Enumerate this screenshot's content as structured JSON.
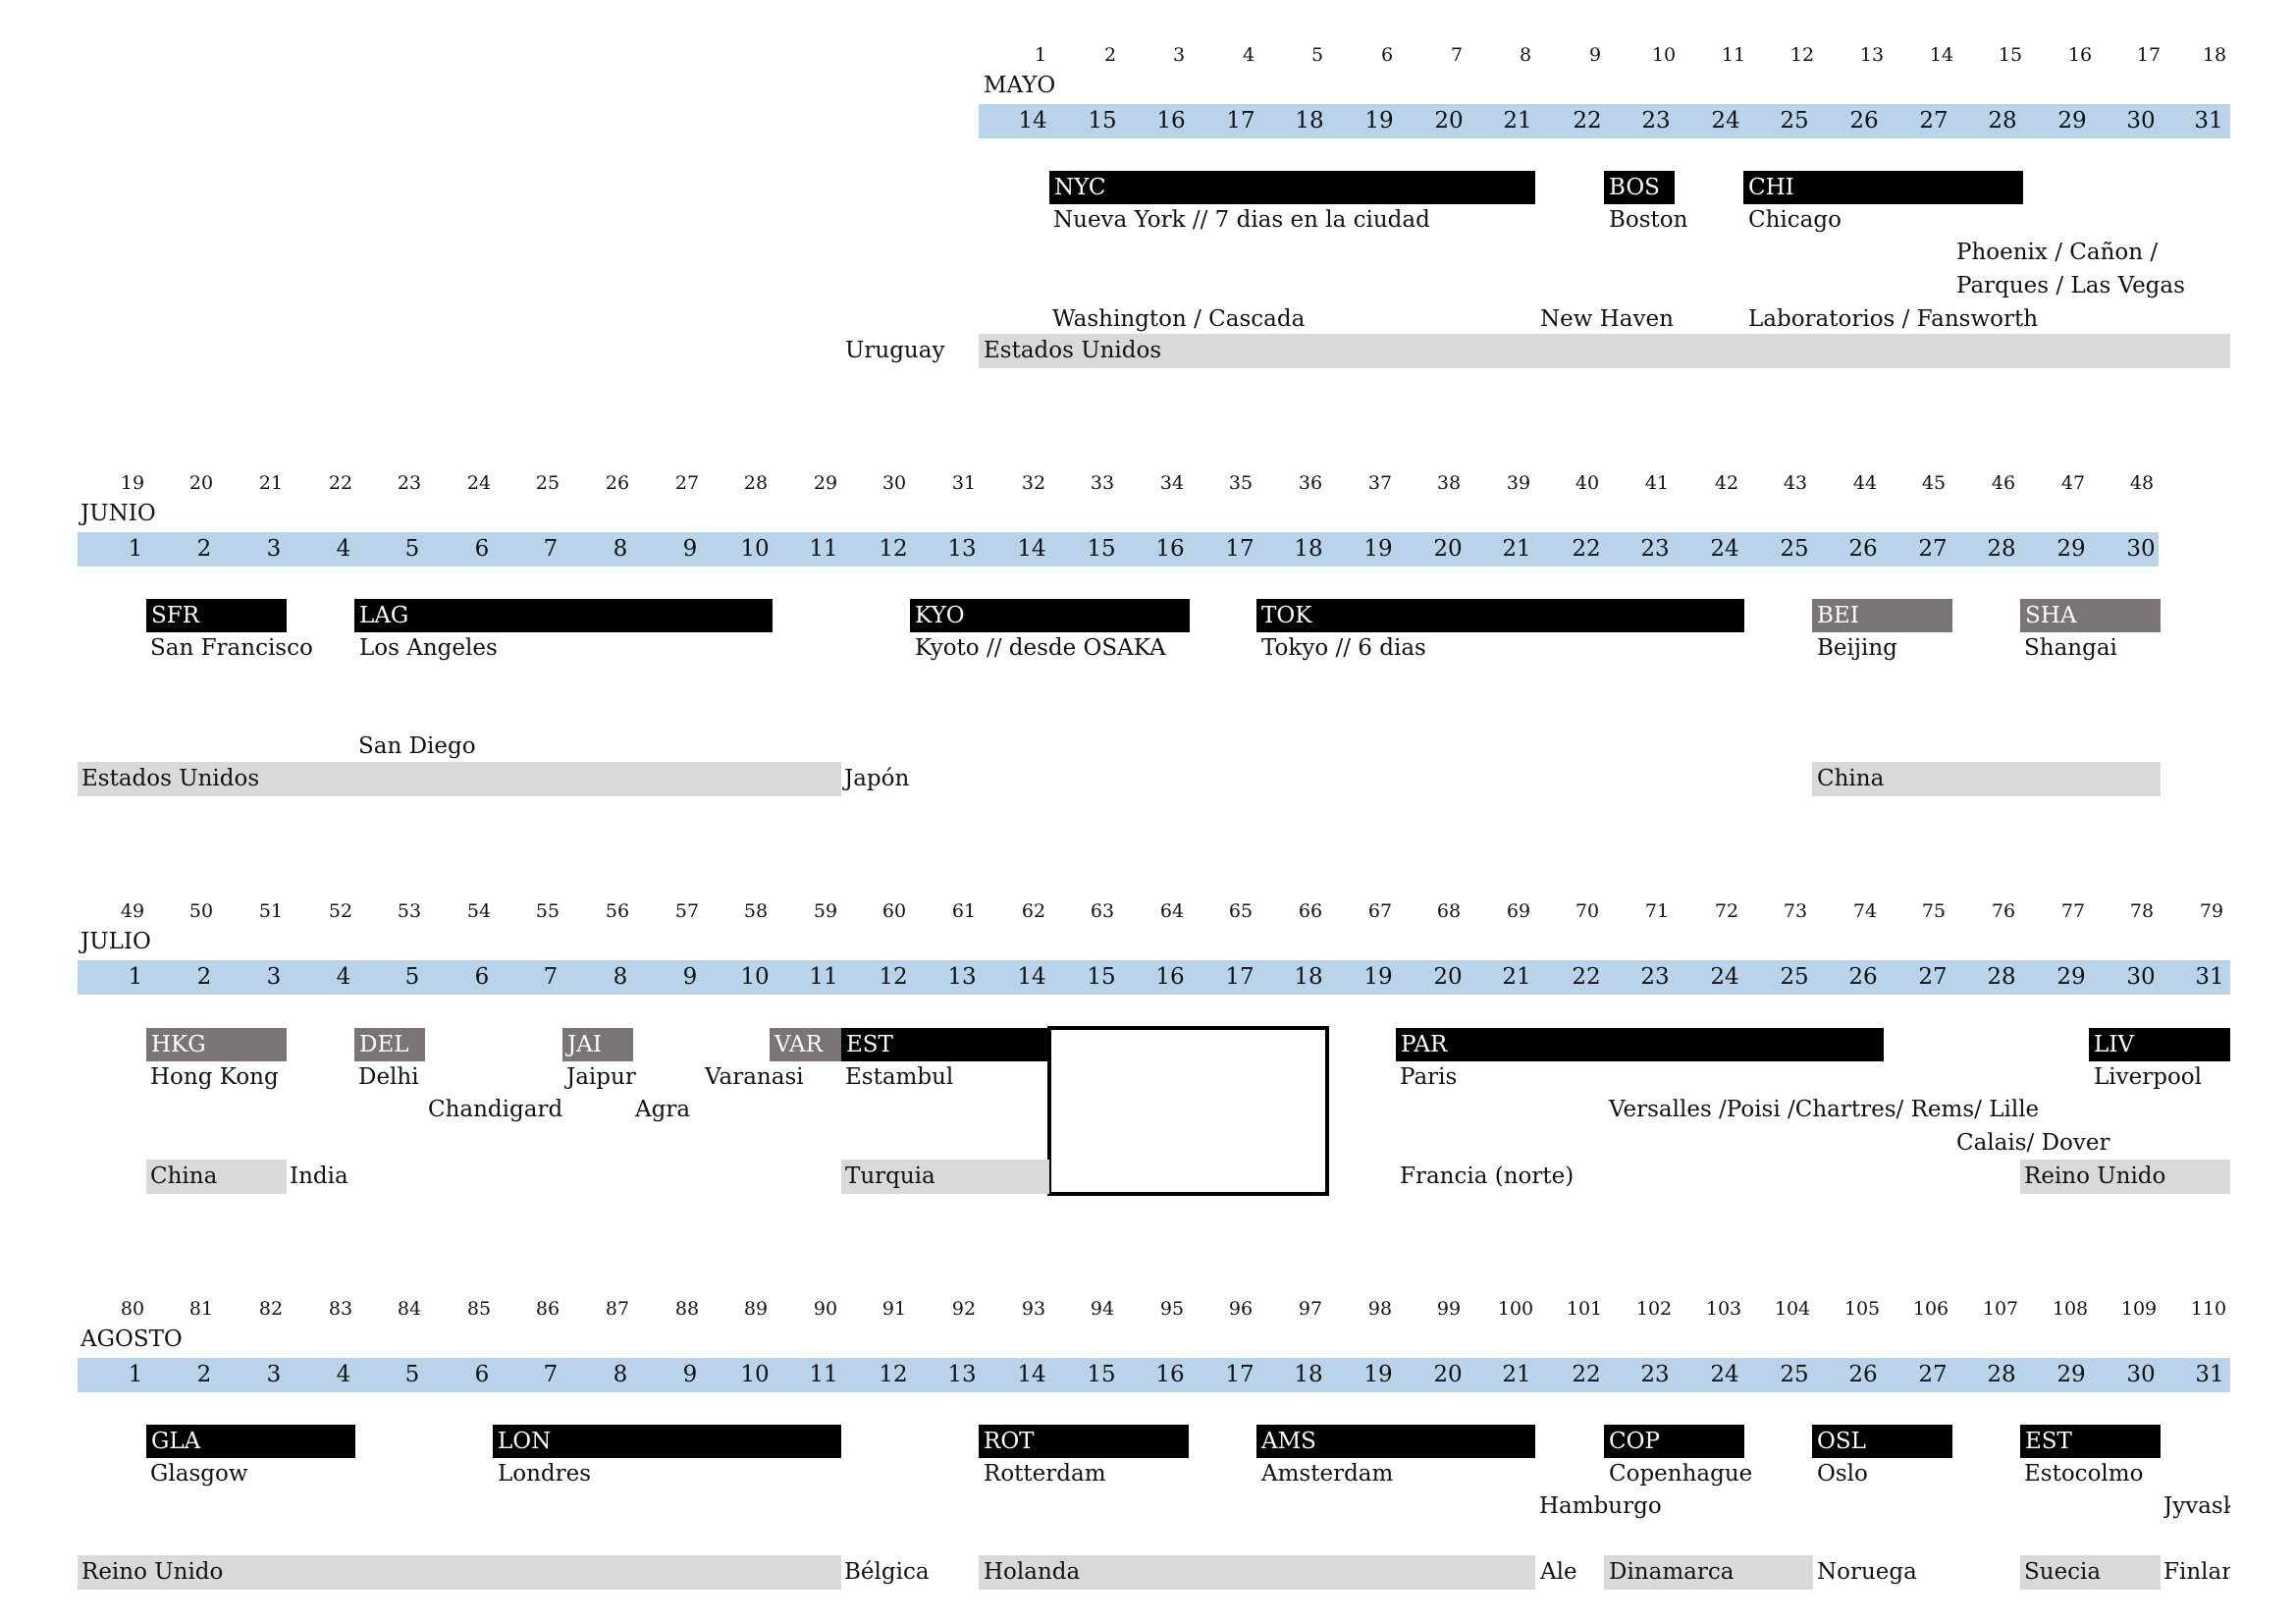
{
  "colors": {
    "day_band": "#b9d4ea",
    "country_band": "#d9d9d9",
    "city_black": "#000000",
    "city_gray": "#7a7474"
  },
  "months": [
    {
      "name": "MAYO",
      "trip_days": [
        "1",
        "2",
        "3",
        "4",
        "5",
        "6",
        "7",
        "8",
        "9",
        "10",
        "11",
        "12",
        "13",
        "14",
        "15",
        "16",
        "17",
        "18"
      ],
      "dates": [
        "14",
        "15",
        "16",
        "17",
        "18",
        "19",
        "20",
        "21",
        "22",
        "23",
        "24",
        "25",
        "26",
        "27",
        "28",
        "29",
        "30",
        "31"
      ],
      "cities": [
        {
          "code": "NYC",
          "label": "Nueva York // 7 dias en la ciudad",
          "style": "black"
        },
        {
          "code": "BOS",
          "label": "Boston",
          "style": "black"
        },
        {
          "code": "CHI",
          "label": "Chicago",
          "style": "black"
        }
      ],
      "notes": [
        "Phoenix / Cañon /",
        "Parques / Las Vegas",
        "Washington / Cascada",
        "New Haven",
        "Laboratorios / Fansworth"
      ],
      "countries": [
        "Uruguay",
        "Estados Unidos"
      ]
    },
    {
      "name": "JUNIO",
      "trip_days": [
        "19",
        "20",
        "21",
        "22",
        "23",
        "24",
        "25",
        "26",
        "27",
        "28",
        "29",
        "30",
        "31",
        "32",
        "33",
        "34",
        "35",
        "36",
        "37",
        "38",
        "39",
        "40",
        "41",
        "42",
        "43",
        "44",
        "45",
        "46",
        "47",
        "48"
      ],
      "dates": [
        "1",
        "2",
        "3",
        "4",
        "5",
        "6",
        "7",
        "8",
        "9",
        "10",
        "11",
        "12",
        "13",
        "14",
        "15",
        "16",
        "17",
        "18",
        "19",
        "20",
        "21",
        "22",
        "23",
        "24",
        "25",
        "26",
        "27",
        "28",
        "29",
        "30"
      ],
      "cities": [
        {
          "code": "SFR",
          "label": "San Francisco",
          "style": "black"
        },
        {
          "code": "LAG",
          "label": "Los Angeles",
          "style": "black"
        },
        {
          "code": "KYO",
          "label": "Kyoto // desde OSAKA",
          "style": "black"
        },
        {
          "code": "TOK",
          "label": "Tokyo // 6 dias",
          "style": "black"
        },
        {
          "code": "BEI",
          "label": "Beijing",
          "style": "gray"
        },
        {
          "code": "SHA",
          "label": "Shangai",
          "style": "gray"
        }
      ],
      "notes": [
        "San Diego"
      ],
      "countries": [
        "Estados Unidos",
        "Japón",
        "China"
      ]
    },
    {
      "name": "JULIO",
      "trip_days": [
        "49",
        "50",
        "51",
        "52",
        "53",
        "54",
        "55",
        "56",
        "57",
        "58",
        "59",
        "60",
        "61",
        "62",
        "63",
        "64",
        "65",
        "66",
        "67",
        "68",
        "69",
        "70",
        "71",
        "72",
        "73",
        "74",
        "75",
        "76",
        "77",
        "78",
        "79"
      ],
      "dates": [
        "1",
        "2",
        "3",
        "4",
        "5",
        "6",
        "7",
        "8",
        "9",
        "10",
        "11",
        "12",
        "13",
        "14",
        "15",
        "16",
        "17",
        "18",
        "19",
        "20",
        "21",
        "22",
        "23",
        "24",
        "25",
        "26",
        "27",
        "28",
        "29",
        "30",
        "31"
      ],
      "cities": [
        {
          "code": "HKG",
          "label": "Hong Kong",
          "style": "gray"
        },
        {
          "code": "DEL",
          "label": "Delhi",
          "style": "gray"
        },
        {
          "code": "JAI",
          "label": "Jaipur",
          "style": "gray"
        },
        {
          "code": "VAR",
          "label": "Varanasi",
          "style": "gray"
        },
        {
          "code": "EST",
          "label": "Estambul",
          "style": "black"
        },
        {
          "code": "PAR",
          "label": "Paris",
          "style": "black"
        },
        {
          "code": "LIV",
          "label": "Liverpool",
          "style": "black"
        }
      ],
      "notes": [
        "Chandigard",
        "Agra",
        "Versalles /Poisi /Chartres/ Rems/ Lille",
        "Calais/ Dover"
      ],
      "countries": [
        "China",
        "India",
        "Turquia",
        "Francia (norte)",
        "Reino Unido"
      ]
    },
    {
      "name": "AGOSTO",
      "trip_days": [
        "80",
        "81",
        "82",
        "83",
        "84",
        "85",
        "86",
        "87",
        "88",
        "89",
        "90",
        "91",
        "92",
        "93",
        "94",
        "95",
        "96",
        "97",
        "98",
        "99",
        "100",
        "101",
        "102",
        "103",
        "104",
        "105",
        "106",
        "107",
        "108",
        "109",
        "110"
      ],
      "dates": [
        "1",
        "2",
        "3",
        "4",
        "5",
        "6",
        "7",
        "8",
        "9",
        "10",
        "11",
        "12",
        "13",
        "14",
        "15",
        "16",
        "17",
        "18",
        "19",
        "20",
        "21",
        "22",
        "23",
        "24",
        "25",
        "26",
        "27",
        "28",
        "29",
        "30",
        "31"
      ],
      "cities": [
        {
          "code": "GLA",
          "label": "Glasgow",
          "style": "black"
        },
        {
          "code": "LON",
          "label": "Londres",
          "style": "black"
        },
        {
          "code": "ROT",
          "label": "Rotterdam",
          "style": "black"
        },
        {
          "code": "AMS",
          "label": "Amsterdam",
          "style": "black"
        },
        {
          "code": "COP",
          "label": "Copenhague",
          "style": "black"
        },
        {
          "code": "OSL",
          "label": "Oslo",
          "style": "black"
        },
        {
          "code": "EST",
          "label": "Estocolmo",
          "style": "black"
        }
      ],
      "notes": [
        "Hamburgo",
        "Jyvasky"
      ],
      "countries": [
        "Reino Unido",
        "Bélgica",
        "Holanda",
        "Ale",
        "Dinamarca",
        "Noruega",
        "Suecia",
        "Finland"
      ]
    }
  ]
}
